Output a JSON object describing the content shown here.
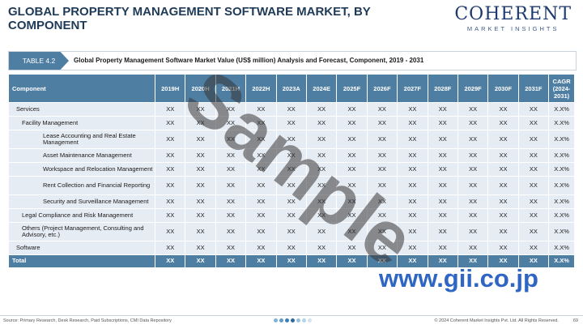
{
  "title": "GLOBAL PROPERTY MANAGEMENT SOFTWARE MARKET, BY COMPONENT",
  "logo": {
    "main": "COHERENT",
    "sub": "MARKET INSIGHTS"
  },
  "banner": {
    "tag": "TABLE 4.2",
    "text": "Global Property Management Software Market Value (US$ million) Analysis and Forecast, Component, 2019 - 2031"
  },
  "table": {
    "component_header": "Component",
    "years": [
      "2019H",
      "2020H",
      "2021H",
      "2022H",
      "2023A",
      "2024E",
      "2025F",
      "2026F",
      "2027F",
      "2028F",
      "2029F",
      "2030F",
      "2031F"
    ],
    "cagr_header": "CAGR (2024-2031)",
    "rows": [
      {
        "label": "Services",
        "level": 0,
        "values": [
          "XX",
          "XX",
          "XX",
          "XX",
          "XX",
          "XX",
          "XX",
          "XX",
          "XX",
          "XX",
          "XX",
          "XX",
          "XX"
        ],
        "cagr": "X.X%"
      },
      {
        "label": "Facility Management",
        "level": 1,
        "values": [
          "XX",
          "XX",
          "XX",
          "XX",
          "XX",
          "XX",
          "XX",
          "XX",
          "XX",
          "XX",
          "XX",
          "XX",
          "XX"
        ],
        "cagr": "X.X%"
      },
      {
        "label": "Lease Accounting and Real Estate Management",
        "level": 2,
        "values": [
          "XX",
          "XX",
          "XX",
          "XX",
          "XX",
          "XX",
          "XX",
          "XX",
          "XX",
          "XX",
          "XX",
          "XX",
          "XX"
        ],
        "cagr": "X.X%"
      },
      {
        "label": "Asset Maintenance Management",
        "level": 2,
        "values": [
          "XX",
          "XX",
          "XX",
          "XX",
          "XX",
          "XX",
          "XX",
          "XX",
          "XX",
          "XX",
          "XX",
          "XX",
          "XX"
        ],
        "cagr": "X.X%"
      },
      {
        "label": "Workspace and Relocation Management",
        "level": 2,
        "values": [
          "XX",
          "XX",
          "XX",
          "XX",
          "XX",
          "XX",
          "XX",
          "XX",
          "XX",
          "XX",
          "XX",
          "XX",
          "XX"
        ],
        "cagr": "X.X%"
      },
      {
        "label": "Rent Collection and Financial Reporting",
        "level": 2,
        "values": [
          "XX",
          "XX",
          "XX",
          "XX",
          "XX",
          "XX",
          "XX",
          "XX",
          "XX",
          "XX",
          "XX",
          "XX",
          "XX"
        ],
        "cagr": "X.X%"
      },
      {
        "label": "Security and Surveillance Management",
        "level": 2,
        "values": [
          "XX",
          "XX",
          "XX",
          "XX",
          "XX",
          "XX",
          "XX",
          "XX",
          "XX",
          "XX",
          "XX",
          "XX",
          "XX"
        ],
        "cagr": "X.X%"
      },
      {
        "label": "Legal Compliance and Risk Management",
        "level": 1,
        "values": [
          "XX",
          "XX",
          "XX",
          "XX",
          "XX",
          "XX",
          "XX",
          "XX",
          "XX",
          "XX",
          "XX",
          "XX",
          "XX"
        ],
        "cagr": "X.X%"
      },
      {
        "label": "Others (Project Management, Consulting and Advisory, etc.)",
        "level": 1,
        "values": [
          "XX",
          "XX",
          "XX",
          "XX",
          "XX",
          "XX",
          "XX",
          "XX",
          "XX",
          "XX",
          "XX",
          "XX",
          "XX"
        ],
        "cagr": "X.X%"
      },
      {
        "label": "Software",
        "level": 0,
        "values": [
          "XX",
          "XX",
          "XX",
          "XX",
          "XX",
          "XX",
          "XX",
          "XX",
          "XX",
          "XX",
          "XX",
          "XX",
          "XX"
        ],
        "cagr": "X.X%"
      }
    ],
    "total": {
      "label": "Total",
      "values": [
        "XX",
        "XX",
        "XX",
        "XX",
        "XX",
        "XX",
        "XX",
        "XX",
        "XX",
        "XX",
        "XX",
        "XX",
        "XX"
      ],
      "cagr": "X.X%"
    }
  },
  "watermark": "Sample",
  "gii_mark": "www.gii.co.jp",
  "footer": {
    "source": "Source: Primary Research, Desk Research, Paid Subscriptions, CMI Data Repository",
    "copyright": "© 2024 Coherent Market Insights Pvt. Ltd. All Rights Reserved.",
    "page": "69"
  },
  "colors": {
    "header": "#4f7ea3",
    "row": "#e6ecf3",
    "title": "#1f3a57",
    "gii": "#2f66c4"
  },
  "footer_dots": [
    "#7fb3d5",
    "#5d9cc8",
    "#3b7fb8",
    "#2a6aa3",
    "#9ac3de",
    "#b5d3e8",
    "#d2e4f1"
  ]
}
